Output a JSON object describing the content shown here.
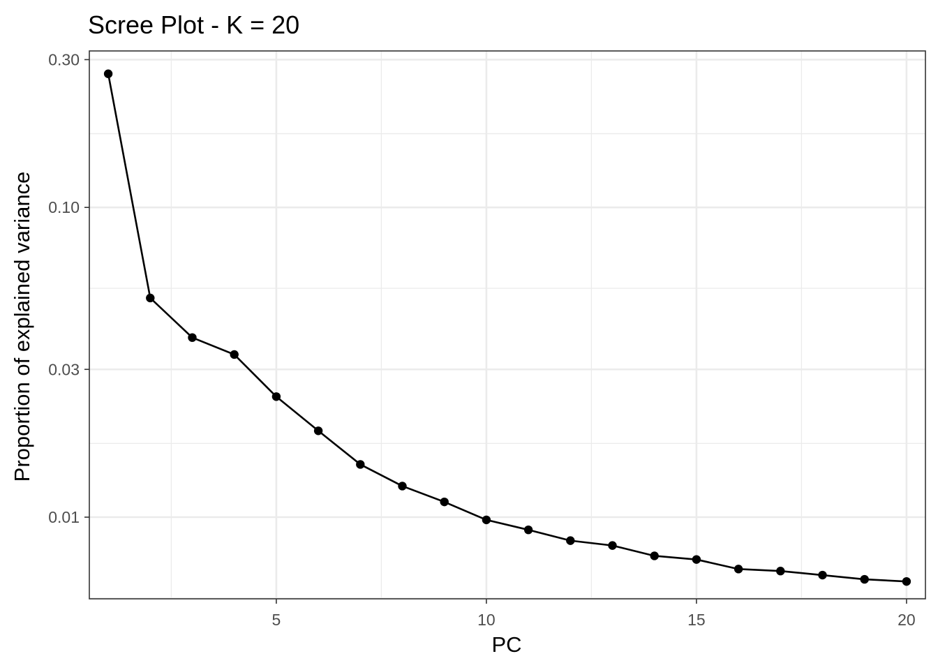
{
  "chart_data": {
    "type": "line",
    "title": "Scree Plot - K = 20",
    "xlabel": "PC",
    "ylabel": "Proportion of explained variance",
    "x": [
      1,
      2,
      3,
      4,
      5,
      6,
      7,
      8,
      9,
      10,
      11,
      12,
      13,
      14,
      15,
      16,
      17,
      18,
      19,
      20
    ],
    "y": [
      0.27,
      0.051,
      0.038,
      0.0335,
      0.0245,
      0.019,
      0.0148,
      0.0126,
      0.0112,
      0.0098,
      0.0091,
      0.0084,
      0.0081,
      0.0075,
      0.0073,
      0.0068,
      0.0067,
      0.0065,
      0.0063,
      0.0062
    ],
    "xlim": [
      0.55,
      20.45
    ],
    "ylim": [
      0.00545,
      0.32
    ],
    "yscale": "log10",
    "x_ticks": [
      5,
      10,
      15,
      20
    ],
    "x_minor_ticks": [
      2.5,
      7.5,
      12.5,
      17.5
    ],
    "y_ticks": [
      0.01,
      0.03,
      0.1,
      0.3
    ],
    "y_tick_labels": [
      "0.01",
      "0.03",
      "0.10",
      "0.30"
    ],
    "y_minor_ticks": [
      0.00548,
      0.0173,
      0.0548,
      0.173
    ],
    "grid": true,
    "legend": "none",
    "colors": {
      "line": "#000000",
      "point": "#000000",
      "grid_major": "#ebebeb",
      "grid_minor": "#ebebeb",
      "panel_border": "#333333",
      "tick_label": "#4d4d4d"
    }
  }
}
